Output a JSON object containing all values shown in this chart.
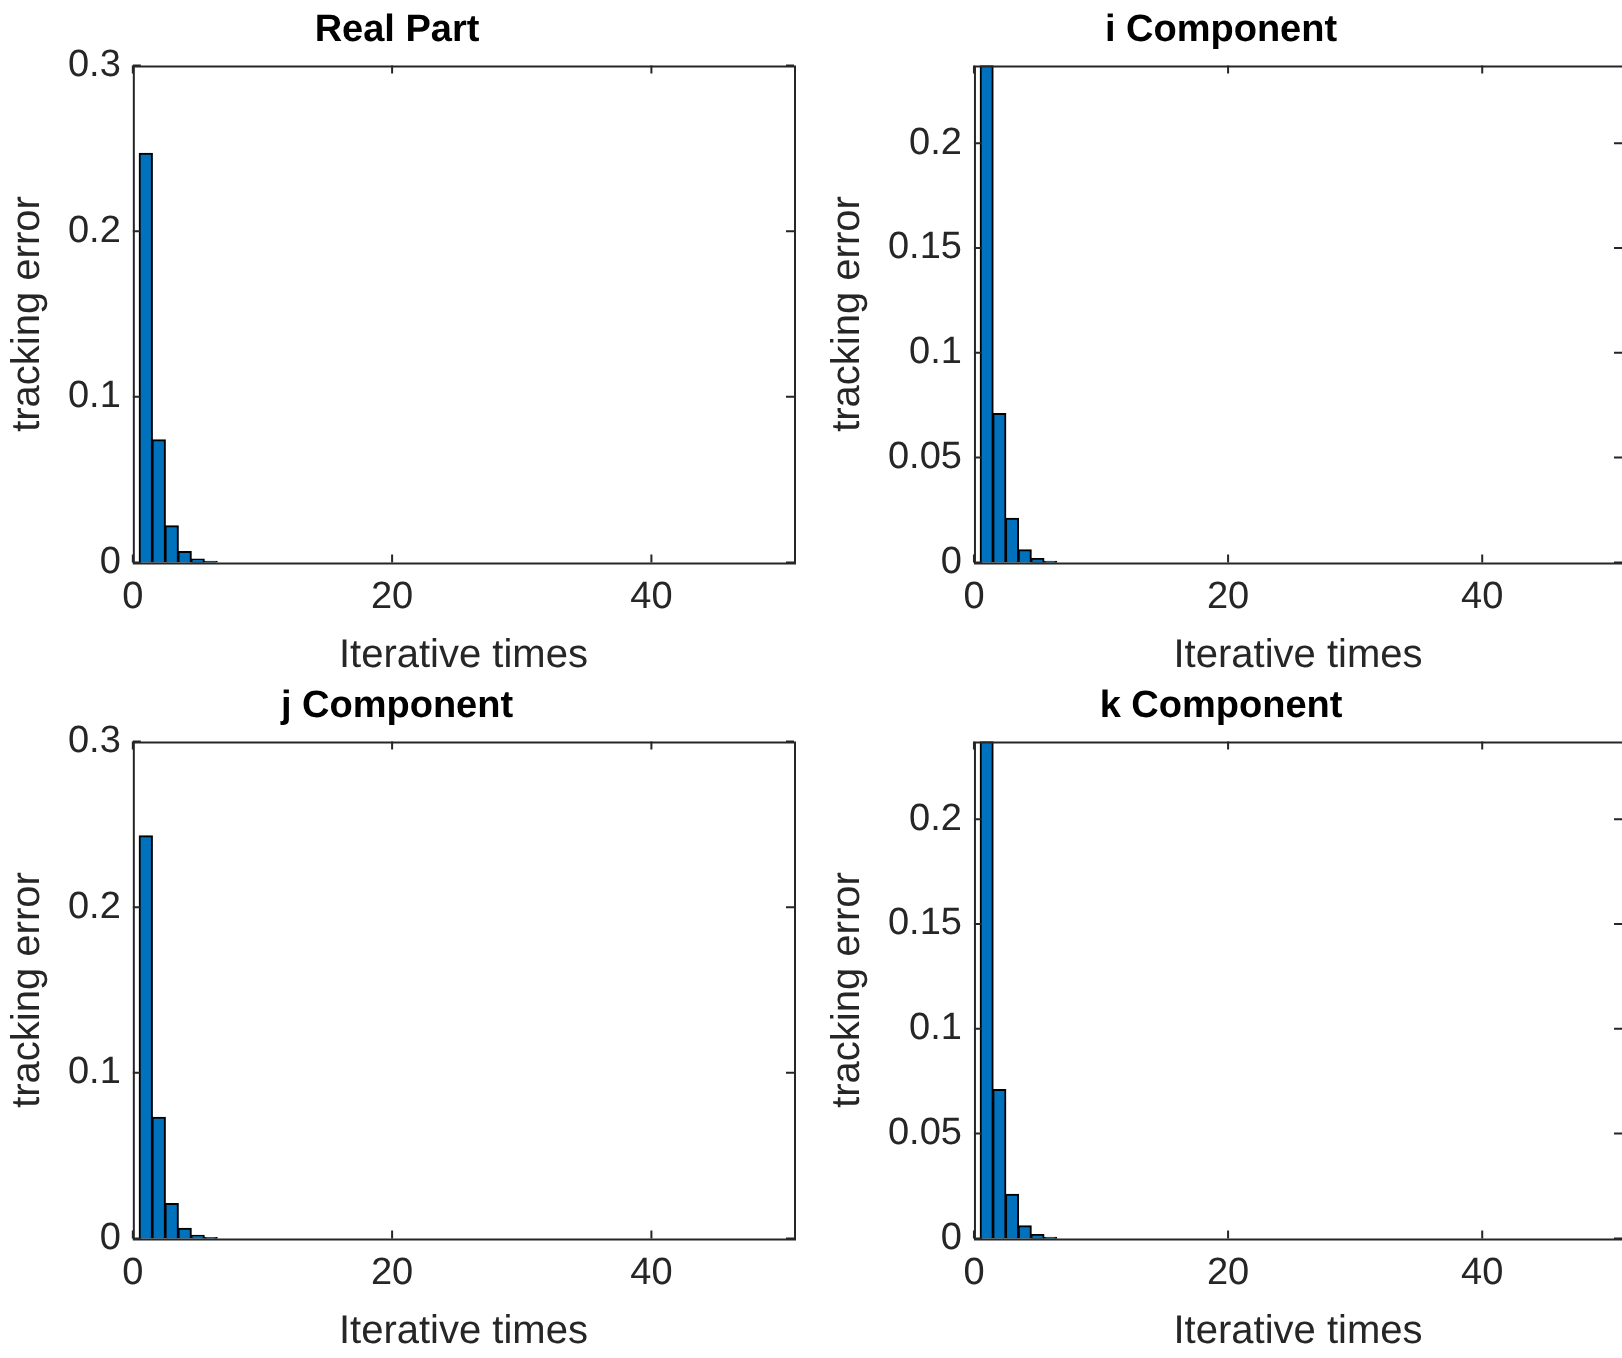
{
  "chart_data": [
    {
      "type": "bar",
      "title": "Real Part",
      "xlabel": "Iterative times",
      "ylabel": "tracking error",
      "color": "#0072bd",
      "grid": false,
      "xlim": [
        0,
        51
      ],
      "xticks": [
        0,
        20,
        40
      ],
      "ylim": [
        0,
        0.3
      ],
      "yticks": [
        0,
        0.1,
        0.2,
        0.3
      ],
      "x": [
        1,
        2,
        3,
        4,
        5,
        6,
        7,
        8,
        9,
        10,
        11,
        12,
        13,
        14,
        15,
        16,
        17,
        18,
        19,
        20,
        21,
        22,
        23,
        24,
        25,
        26,
        27,
        28,
        29,
        30,
        31,
        32,
        33,
        34,
        35,
        36,
        37,
        38,
        39,
        40,
        41,
        42,
        43,
        44,
        45,
        46,
        47,
        48,
        49,
        50
      ],
      "values": [
        0.247,
        0.074,
        0.022,
        0.0065,
        0.002,
        0.0006,
        0,
        0,
        0,
        0,
        0,
        0,
        0,
        0,
        0,
        0,
        0,
        0,
        0,
        0,
        0,
        0,
        0,
        0,
        0,
        0,
        0,
        0,
        0,
        0,
        0,
        0,
        0,
        0,
        0,
        0,
        0,
        0,
        0,
        0,
        0,
        0,
        0,
        0,
        0,
        0,
        0,
        0,
        0,
        0
      ]
    },
    {
      "type": "bar",
      "title": "i Component",
      "xlabel": "Iterative times",
      "ylabel": "tracking error",
      "color": "#0072bd",
      "grid": false,
      "xlim": [
        0,
        51
      ],
      "xticks": [
        0,
        20,
        40
      ],
      "ylim": [
        0,
        0.237
      ],
      "yticks": [
        0,
        0.05,
        0.1,
        0.15,
        0.2
      ],
      "x": [
        1,
        2,
        3,
        4,
        5,
        6,
        7,
        8,
        9,
        10,
        11,
        12,
        13,
        14,
        15,
        16,
        17,
        18,
        19,
        20,
        21,
        22,
        23,
        24,
        25,
        26,
        27,
        28,
        29,
        30,
        31,
        32,
        33,
        34,
        35,
        36,
        37,
        38,
        39,
        40,
        41,
        42,
        43,
        44,
        45,
        46,
        47,
        48,
        49,
        50
      ],
      "values": [
        0.237,
        0.071,
        0.021,
        0.006,
        0.0018,
        0.0005,
        0,
        0,
        0,
        0,
        0,
        0,
        0,
        0,
        0,
        0,
        0,
        0,
        0,
        0,
        0,
        0,
        0,
        0,
        0,
        0,
        0,
        0,
        0,
        0,
        0,
        0,
        0,
        0,
        0,
        0,
        0,
        0,
        0,
        0,
        0,
        0,
        0,
        0,
        0,
        0,
        0,
        0,
        0,
        0
      ]
    },
    {
      "type": "bar",
      "title": "j Component",
      "xlabel": "Iterative times",
      "ylabel": "tracking error",
      "color": "#0072bd",
      "grid": false,
      "xlim": [
        0,
        51
      ],
      "xticks": [
        0,
        20,
        40
      ],
      "ylim": [
        0,
        0.3
      ],
      "yticks": [
        0,
        0.1,
        0.2,
        0.3
      ],
      "x": [
        1,
        2,
        3,
        4,
        5,
        6,
        7,
        8,
        9,
        10,
        11,
        12,
        13,
        14,
        15,
        16,
        17,
        18,
        19,
        20,
        21,
        22,
        23,
        24,
        25,
        26,
        27,
        28,
        29,
        30,
        31,
        32,
        33,
        34,
        35,
        36,
        37,
        38,
        39,
        40,
        41,
        42,
        43,
        44,
        45,
        46,
        47,
        48,
        49,
        50
      ],
      "values": [
        0.243,
        0.073,
        0.021,
        0.006,
        0.0018,
        0.0005,
        0,
        0,
        0,
        0,
        0,
        0,
        0,
        0,
        0,
        0,
        0,
        0,
        0,
        0,
        0,
        0,
        0,
        0,
        0,
        0,
        0,
        0,
        0,
        0,
        0,
        0,
        0,
        0,
        0,
        0,
        0,
        0,
        0,
        0,
        0,
        0,
        0,
        0,
        0,
        0,
        0,
        0,
        0,
        0
      ]
    },
    {
      "type": "bar",
      "title": "k Component",
      "xlabel": "Iterative times",
      "ylabel": "tracking error",
      "color": "#0072bd",
      "grid": false,
      "xlim": [
        0,
        51
      ],
      "xticks": [
        0,
        20,
        40
      ],
      "ylim": [
        0,
        0.237
      ],
      "yticks": [
        0,
        0.05,
        0.1,
        0.15,
        0.2
      ],
      "x": [
        1,
        2,
        3,
        4,
        5,
        6,
        7,
        8,
        9,
        10,
        11,
        12,
        13,
        14,
        15,
        16,
        17,
        18,
        19,
        20,
        21,
        22,
        23,
        24,
        25,
        26,
        27,
        28,
        29,
        30,
        31,
        32,
        33,
        34,
        35,
        36,
        37,
        38,
        39,
        40,
        41,
        42,
        43,
        44,
        45,
        46,
        47,
        48,
        49,
        50
      ],
      "values": [
        0.237,
        0.071,
        0.021,
        0.006,
        0.0018,
        0.0005,
        0,
        0,
        0,
        0,
        0,
        0,
        0,
        0,
        0,
        0,
        0,
        0,
        0,
        0,
        0,
        0,
        0,
        0,
        0,
        0,
        0,
        0,
        0,
        0,
        0,
        0,
        0,
        0,
        0,
        0,
        0,
        0,
        0,
        0,
        0,
        0,
        0,
        0,
        0,
        0,
        0,
        0,
        0,
        0
      ]
    }
  ]
}
